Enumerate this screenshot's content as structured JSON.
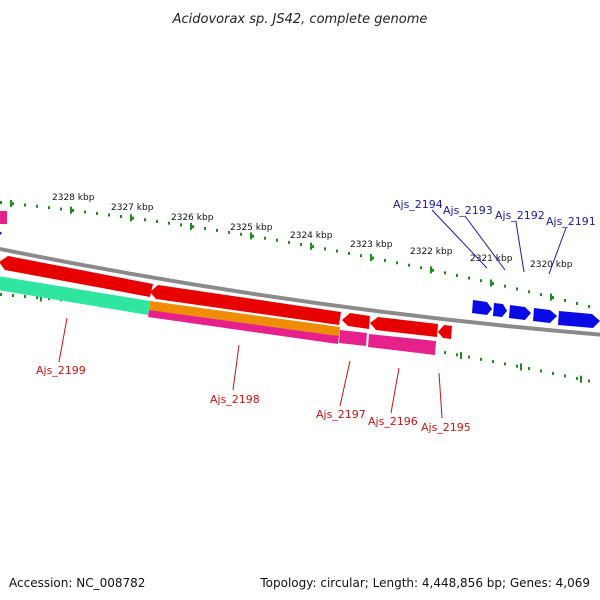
{
  "title": "Acidovorax sp. JS42, complete genome",
  "footer": {
    "accession": "Accession: NC_008782",
    "summary": "Topology: circular; Length: 4,448,856 bp; Genes: 4,069"
  },
  "colors": {
    "backbone": "#8a8a8a",
    "ticks": "#1f8a1f",
    "forward_gene": "#0a0ae6",
    "reverse_gene": "#e60000",
    "orange_gene": "#f08c00",
    "pink_gene": "#e6218c",
    "teal_gene": "#2ee6a0"
  },
  "ticks_upper": [
    "2328 kbp",
    "2327 kbp",
    "2326 kbp",
    "2325 kbp",
    "2324 kbp",
    "2323 kbp",
    "2322 kbp",
    "2321 kbp",
    "2320 kbp"
  ],
  "forward_labels": [
    "Ajs_2194",
    "Ajs_2193",
    "Ajs_2192",
    "Ajs_2191"
  ],
  "reverse_labels": [
    "Ajs_2199",
    "Ajs_2198",
    "Ajs_2197",
    "Ajs_2196",
    "Ajs_2195"
  ]
}
